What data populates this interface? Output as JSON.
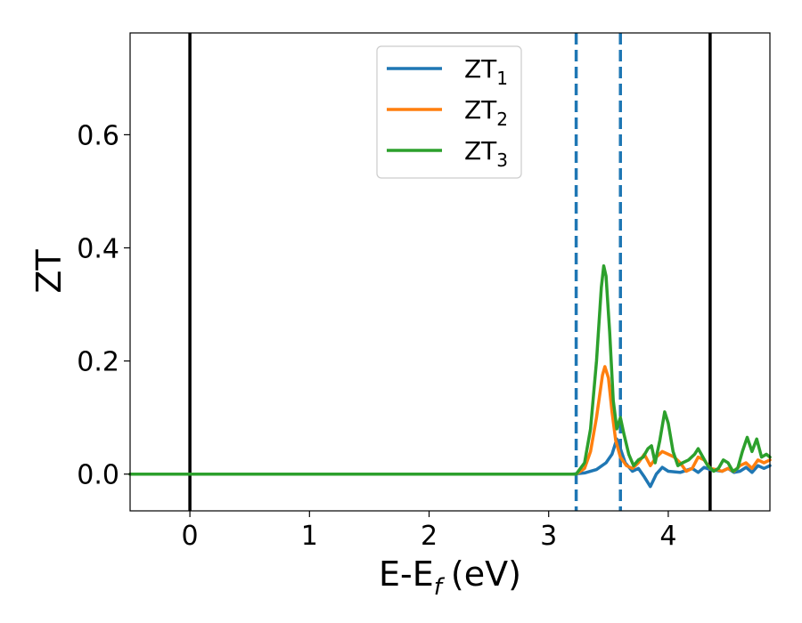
{
  "chart_data": {
    "type": "line",
    "xlabel": "E-E",
    "xlabel_sub": "f",
    "xlabel_unit": "(eV)",
    "ylabel": "ZT",
    "xlim": [
      -0.5,
      4.85
    ],
    "ylim": [
      -0.065,
      0.78
    ],
    "x_ticks": [
      0,
      1,
      2,
      3,
      4
    ],
    "y_ticks": [
      0.0,
      0.2,
      0.4,
      0.6
    ],
    "x_tick_labels": [
      "0",
      "1",
      "2",
      "3",
      "4"
    ],
    "y_tick_labels": [
      "0.0",
      "0.2",
      "0.4",
      "0.6"
    ],
    "grid": false,
    "legend_position": "top-center",
    "vertical_lines": [
      {
        "x": 0.0,
        "style": "solid",
        "color": "#000000"
      },
      {
        "x": 4.35,
        "style": "solid",
        "color": "#000000"
      },
      {
        "x": 3.23,
        "style": "dashed",
        "color": "#1f77b4"
      },
      {
        "x": 3.6,
        "style": "dashed",
        "color": "#1f77b4"
      }
    ],
    "series": [
      {
        "name": "ZT",
        "sub": "1",
        "color": "#1f77b4",
        "points": [
          [
            -0.5,
            0
          ],
          [
            3.2,
            0
          ],
          [
            3.3,
            0.002
          ],
          [
            3.4,
            0.008
          ],
          [
            3.48,
            0.02
          ],
          [
            3.53,
            0.035
          ],
          [
            3.57,
            0.062
          ],
          [
            3.6,
            0.045
          ],
          [
            3.64,
            0.02
          ],
          [
            3.7,
            0.005
          ],
          [
            3.75,
            0.01
          ],
          [
            3.8,
            -0.005
          ],
          [
            3.85,
            -0.022
          ],
          [
            3.9,
            0.0
          ],
          [
            3.95,
            0.012
          ],
          [
            4.0,
            0.005
          ],
          [
            4.1,
            0.003
          ],
          [
            4.2,
            0.01
          ],
          [
            4.25,
            0.003
          ],
          [
            4.3,
            0.012
          ],
          [
            4.35,
            0.008
          ],
          [
            4.45,
            0.005
          ],
          [
            4.5,
            0.01
          ],
          [
            4.55,
            0.003
          ],
          [
            4.6,
            0.005
          ],
          [
            4.65,
            0.012
          ],
          [
            4.7,
            0.003
          ],
          [
            4.75,
            0.015
          ],
          [
            4.8,
            0.01
          ],
          [
            4.85,
            0.015
          ]
        ]
      },
      {
        "name": "ZT",
        "sub": "2",
        "color": "#ff7f0e",
        "points": [
          [
            -0.5,
            0
          ],
          [
            3.23,
            0
          ],
          [
            3.3,
            0.01
          ],
          [
            3.35,
            0.04
          ],
          [
            3.4,
            0.1
          ],
          [
            3.45,
            0.175
          ],
          [
            3.47,
            0.19
          ],
          [
            3.5,
            0.17
          ],
          [
            3.53,
            0.11
          ],
          [
            3.56,
            0.06
          ],
          [
            3.6,
            0.03
          ],
          [
            3.65,
            0.015
          ],
          [
            3.7,
            0.01
          ],
          [
            3.75,
            0.02
          ],
          [
            3.8,
            0.035
          ],
          [
            3.85,
            0.015
          ],
          [
            3.9,
            0.03
          ],
          [
            3.95,
            0.04
          ],
          [
            4.0,
            0.035
          ],
          [
            4.05,
            0.03
          ],
          [
            4.1,
            0.02
          ],
          [
            4.15,
            0.005
          ],
          [
            4.2,
            0.01
          ],
          [
            4.25,
            0.03
          ],
          [
            4.3,
            0.025
          ],
          [
            4.35,
            0.01
          ],
          [
            4.4,
            0.008
          ],
          [
            4.45,
            0.005
          ],
          [
            4.5,
            0.01
          ],
          [
            4.55,
            0.005
          ],
          [
            4.6,
            0.015
          ],
          [
            4.65,
            0.02
          ],
          [
            4.7,
            0.01
          ],
          [
            4.75,
            0.025
          ],
          [
            4.8,
            0.02
          ],
          [
            4.85,
            0.025
          ]
        ]
      },
      {
        "name": "ZT",
        "sub": "3",
        "color": "#2ca02c",
        "points": [
          [
            -0.5,
            0
          ],
          [
            3.23,
            0
          ],
          [
            3.3,
            0.02
          ],
          [
            3.35,
            0.08
          ],
          [
            3.4,
            0.2
          ],
          [
            3.44,
            0.33
          ],
          [
            3.46,
            0.368
          ],
          [
            3.48,
            0.35
          ],
          [
            3.51,
            0.25
          ],
          [
            3.54,
            0.13
          ],
          [
            3.57,
            0.08
          ],
          [
            3.6,
            0.1
          ],
          [
            3.63,
            0.07
          ],
          [
            3.67,
            0.035
          ],
          [
            3.71,
            0.015
          ],
          [
            3.75,
            0.025
          ],
          [
            3.79,
            0.03
          ],
          [
            3.83,
            0.045
          ],
          [
            3.86,
            0.05
          ],
          [
            3.89,
            0.02
          ],
          [
            3.93,
            0.06
          ],
          [
            3.97,
            0.11
          ],
          [
            4.0,
            0.09
          ],
          [
            4.04,
            0.04
          ],
          [
            4.08,
            0.015
          ],
          [
            4.12,
            0.02
          ],
          [
            4.17,
            0.025
          ],
          [
            4.22,
            0.035
          ],
          [
            4.25,
            0.045
          ],
          [
            4.29,
            0.03
          ],
          [
            4.33,
            0.015
          ],
          [
            4.38,
            0.005
          ],
          [
            4.42,
            0.01
          ],
          [
            4.46,
            0.025
          ],
          [
            4.5,
            0.02
          ],
          [
            4.54,
            0.005
          ],
          [
            4.58,
            0.01
          ],
          [
            4.62,
            0.04
          ],
          [
            4.66,
            0.065
          ],
          [
            4.7,
            0.04
          ],
          [
            4.74,
            0.062
          ],
          [
            4.78,
            0.03
          ],
          [
            4.82,
            0.035
          ],
          [
            4.85,
            0.03
          ]
        ]
      }
    ]
  }
}
